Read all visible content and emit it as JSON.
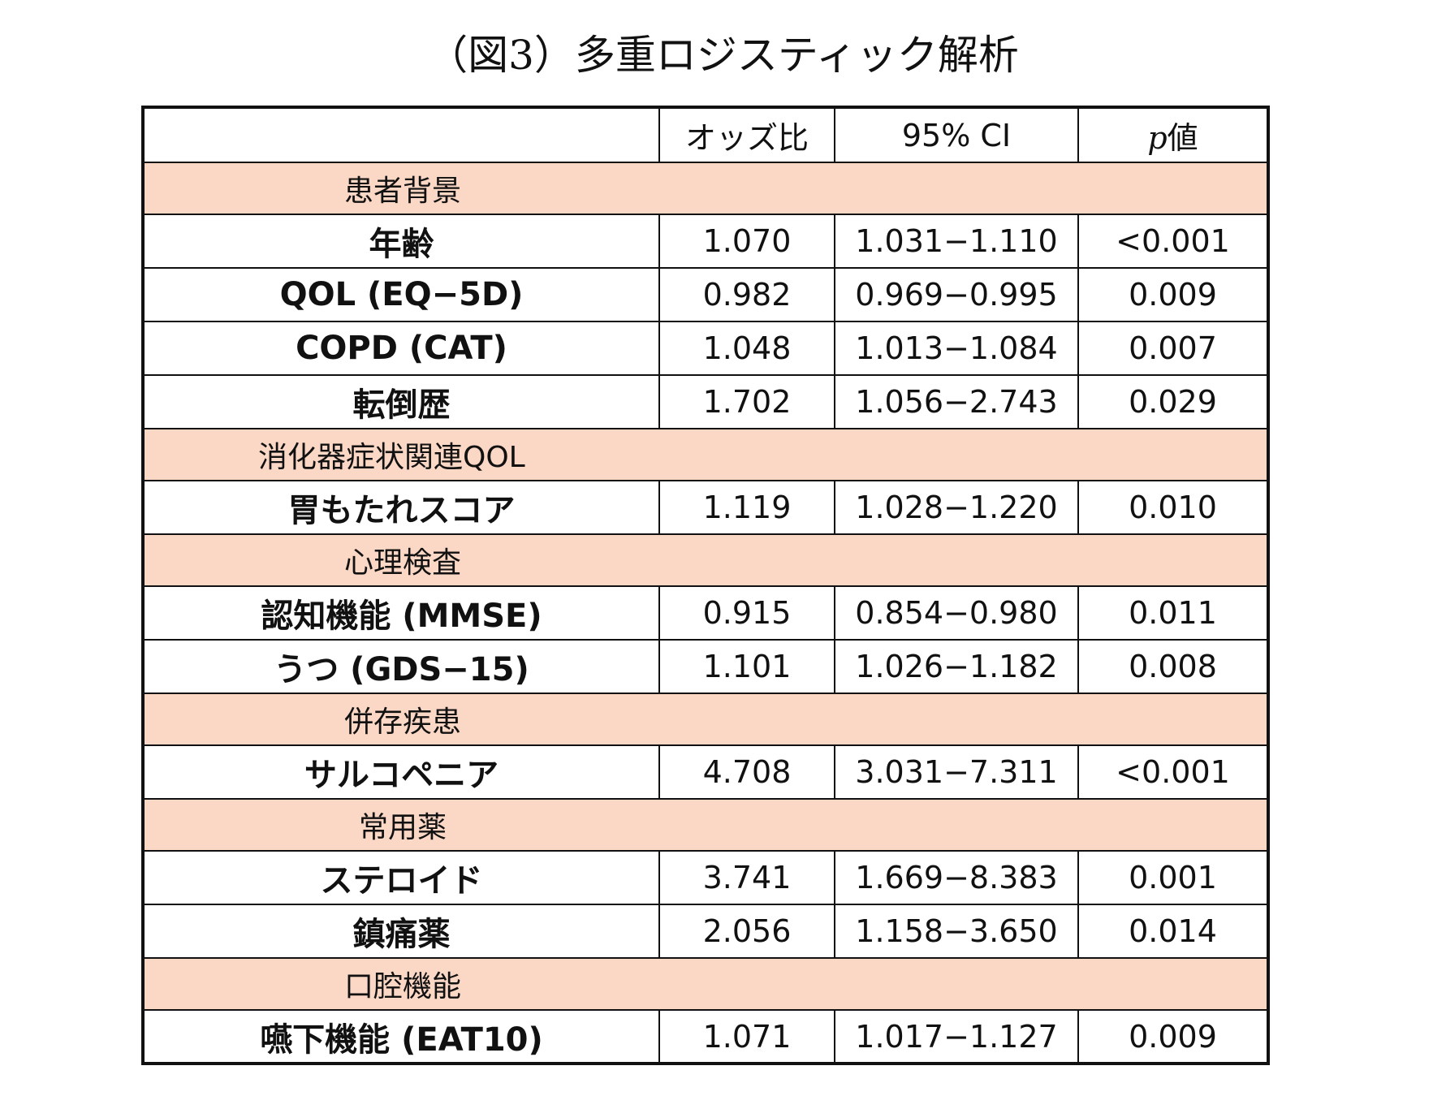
{
  "title": "（図3）多重ロジスティック解析",
  "header": {
    "col_variable": "",
    "col_or": "オッズ比",
    "col_ci": "95% CI",
    "col_p": "p値"
  },
  "groups": [
    {
      "category": "患者背景",
      "rows": [
        {
          "label": "年齢",
          "or": "1.070",
          "ci": "1.031−1.110",
          "p": "<0.001"
        },
        {
          "label": "QOL (EQ−5D)",
          "or": "0.982",
          "ci": "0.969−0.995",
          "p": "0.009"
        },
        {
          "label": "COPD (CAT)",
          "or": "1.048",
          "ci": "1.013−1.084",
          "p": "0.007"
        },
        {
          "label": "転倒歴",
          "or": "1.702",
          "ci": "1.056−2.743",
          "p": "0.029"
        }
      ]
    },
    {
      "category": "消化器症状関連QOL",
      "rows": [
        {
          "label": "胃もたれスコア",
          "or": "1.119",
          "ci": "1.028−1.220",
          "p": "0.010"
        }
      ]
    },
    {
      "category": "心理検査",
      "rows": [
        {
          "label": "認知機能 (MMSE)",
          "or": "0.915",
          "ci": "0.854−0.980",
          "p": "0.011"
        },
        {
          "label": "うつ (GDS−15)",
          "or": "1.101",
          "ci": "1.026−1.182",
          "p": "0.008"
        }
      ]
    },
    {
      "category": "併存疾患",
      "rows": [
        {
          "label": "サルコペニア",
          "or": "4.708",
          "ci": "3.031−7.311",
          "p": "<0.001"
        }
      ]
    },
    {
      "category": "常用薬",
      "rows": [
        {
          "label": "ステロイド",
          "or": "3.741",
          "ci": "1.669−8.383",
          "p": "0.001"
        },
        {
          "label": "鎮痛薬",
          "or": "2.056",
          "ci": "1.158−3.650",
          "p": "0.014"
        }
      ]
    },
    {
      "category": "口腔機能",
      "rows": [
        {
          "label": "嚥下機能 (EAT10)",
          "or": "1.071",
          "ci": "1.017−1.127",
          "p": "0.009"
        }
      ]
    }
  ],
  "colors": {
    "category_row_bg": "#fbd7c5",
    "border": "#111111"
  }
}
